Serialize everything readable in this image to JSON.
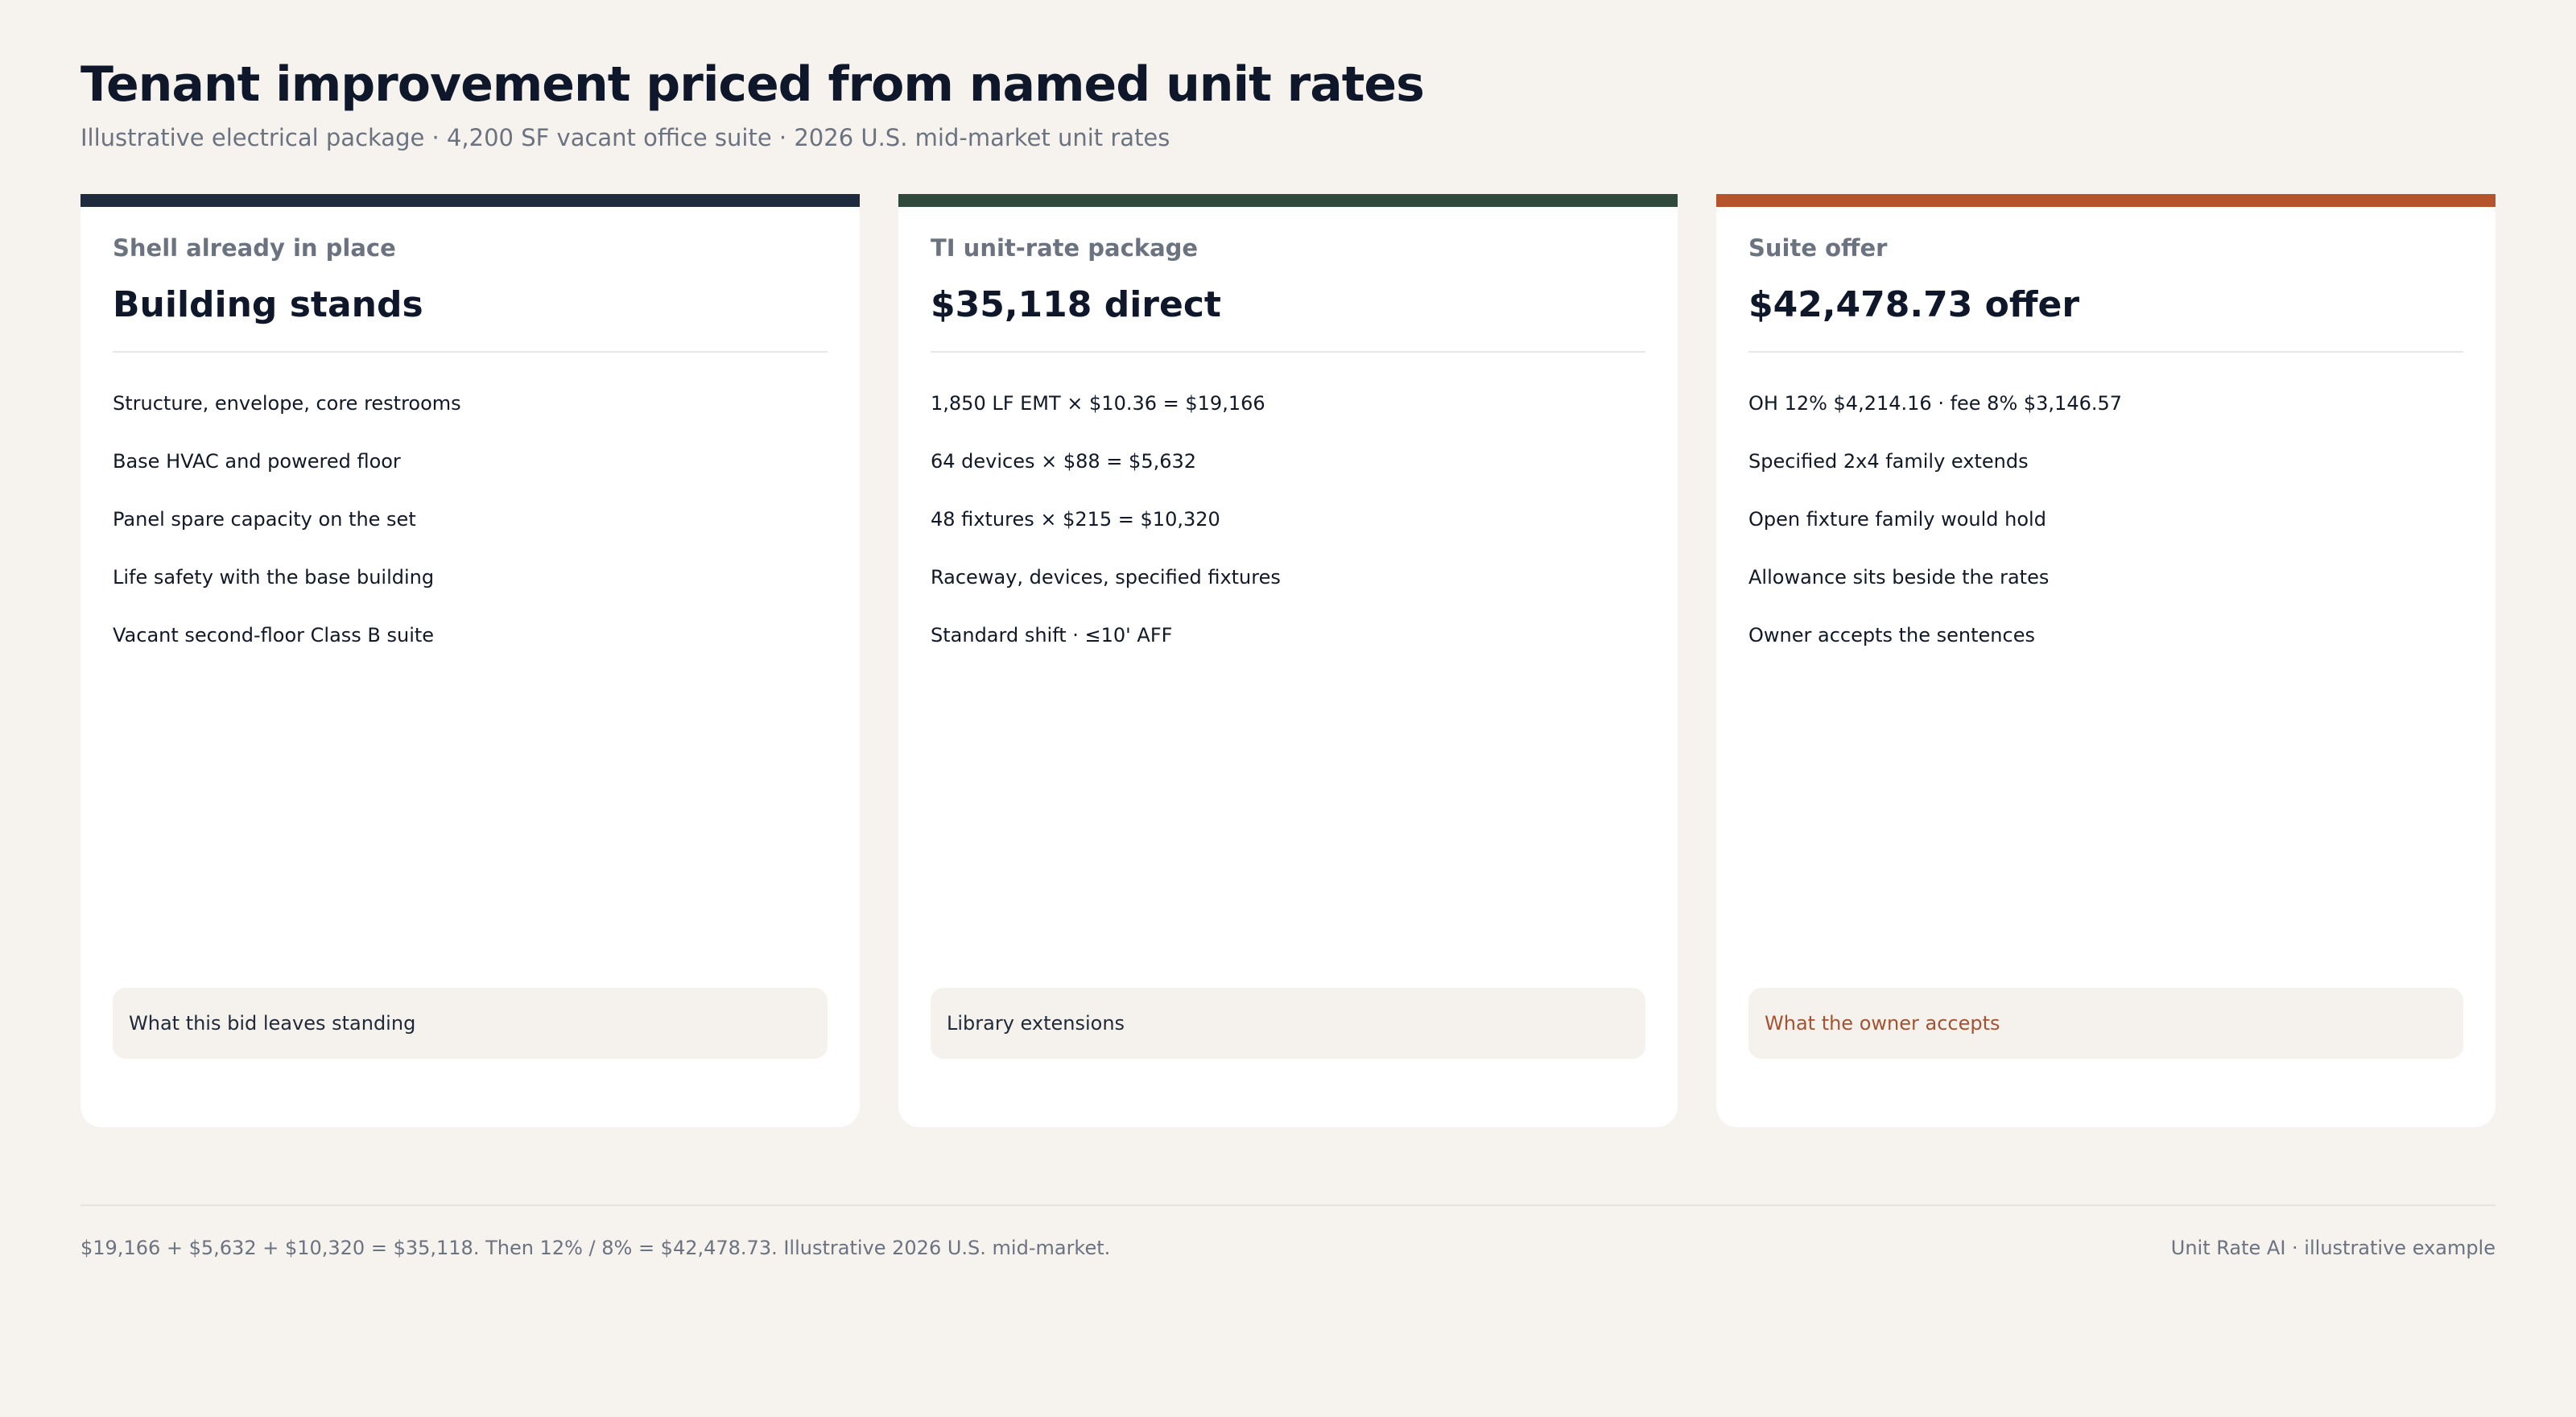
{
  "header": {
    "title": "Tenant improvement priced from named unit rates",
    "subtitle": "Illustrative electrical package · 4,200 SF vacant office suite · 2026 U.S. mid-market unit rates"
  },
  "cards": [
    {
      "label": "Shell already in place",
      "heading": "Building stands",
      "accent": "#1e2a3e",
      "note_color": "#1f2937",
      "items": [
        "Structure, envelope, core restrooms",
        "Base HVAC and powered floor",
        "Panel spare capacity on the set",
        "Life safety with the base building",
        "Vacant second-floor Class B suite"
      ],
      "note": "What this bid leaves standing"
    },
    {
      "label": "TI unit-rate package",
      "heading": "$35,118 direct",
      "accent": "#2f4a3c",
      "note_color": "#1f2937",
      "items": [
        "1,850 LF EMT × $10.36 = $19,166",
        "64 devices × $88 = $5,632",
        "48 fixtures × $215 = $10,320",
        "Raceway, devices, specified fixtures",
        "Standard shift · ≤10' AFF"
      ],
      "note": "Library extensions"
    },
    {
      "label": "Suite offer",
      "heading": "$42,478.73 offer",
      "accent": "#b5532c",
      "note_color": "#a5522f",
      "items": [
        "OH 12% $4,214.16 · fee 8% $3,146.57",
        "Specified 2x4 family extends",
        "Open fixture family would hold",
        "Allowance sits beside the rates",
        "Owner accepts the sentences"
      ],
      "note": "What the owner accepts"
    }
  ],
  "footer": {
    "left": "$19,166 + $5,632 + $10,320 = $35,118. Then 12% / 8% = $42,478.73. Illustrative 2026 U.S. mid-market.",
    "right": "Unit Rate AI · illustrative example"
  }
}
